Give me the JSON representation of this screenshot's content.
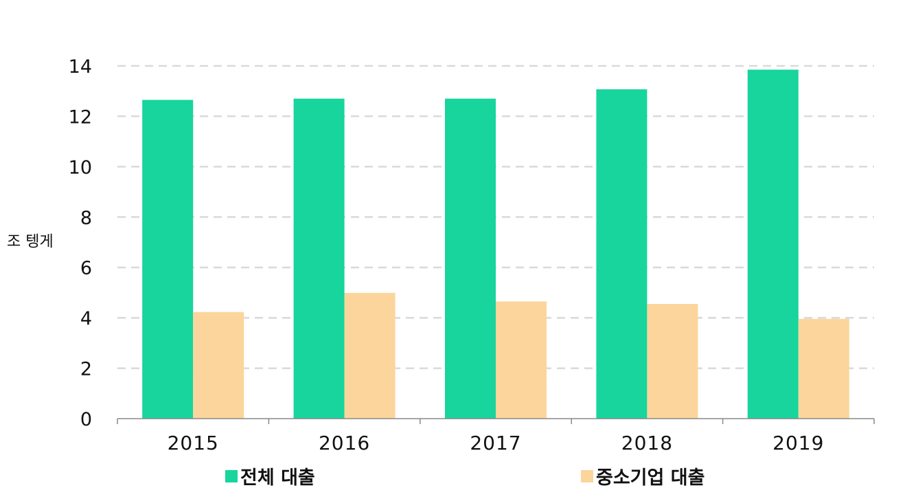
{
  "chart_data": {
    "type": "bar",
    "categories": [
      "2015",
      "2016",
      "2017",
      "2018",
      "2019"
    ],
    "series": [
      {
        "name": "전체 대출",
        "values": [
          12.65,
          12.7,
          12.7,
          13.07,
          13.85
        ],
        "color": "#17d59c"
      },
      {
        "name": "중소기업 대출",
        "values": [
          4.23,
          4.99,
          4.65,
          4.55,
          3.96
        ],
        "color": "#fbd59b"
      }
    ],
    "title": "",
    "xlabel": "",
    "ylabel": "조 텡게",
    "ylim": [
      0,
      14
    ],
    "yticks": [
      0,
      2,
      4,
      6,
      8,
      10,
      12,
      14
    ],
    "grid": true,
    "legend_position": "bottom"
  }
}
